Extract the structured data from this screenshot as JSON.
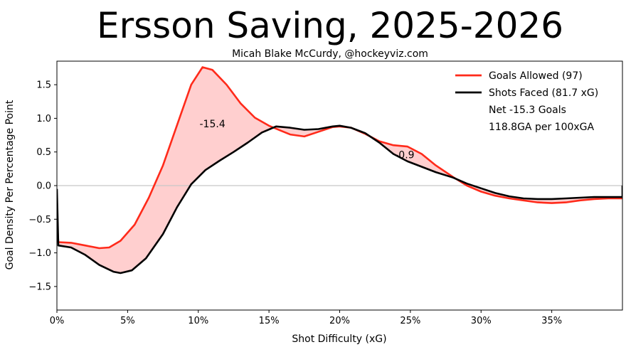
{
  "chart_data": {
    "type": "line",
    "title": "Ersson Saving, 2025-2026",
    "subtitle": "Micah Blake McCurdy, @hockeyviz.com",
    "xlabel": "Shot Difficulty (xG)",
    "ylabel": "Goal Density Per Percentage Point",
    "xlim": [
      0,
      40
    ],
    "ylim": [
      -1.85,
      1.85
    ],
    "x_ticks": [
      0,
      5,
      10,
      15,
      20,
      25,
      30,
      35
    ],
    "x_tick_labels": [
      "0%",
      "5%",
      "10%",
      "15%",
      "20%",
      "25%",
      "30%",
      "35%"
    ],
    "y_ticks": [
      -1.5,
      -1.0,
      -0.5,
      0.0,
      0.5,
      1.0,
      1.5
    ],
    "y_tick_labels": [
      "−1.5",
      "−1.0",
      "−0.5",
      "0.0",
      "0.5",
      "1.0",
      "1.5"
    ],
    "grid": false,
    "zero_line": true,
    "legend_position": "top-right",
    "series": [
      {
        "name": "Goals Allowed (97)",
        "color": "#ff2a1a",
        "points": [
          [
            0,
            -0.5
          ],
          [
            0.1,
            -0.84
          ],
          [
            1,
            -0.85
          ],
          [
            2,
            -0.89
          ],
          [
            3,
            -0.93
          ],
          [
            3.7,
            -0.92
          ],
          [
            4.5,
            -0.82
          ],
          [
            5.5,
            -0.58
          ],
          [
            6.5,
            -0.18
          ],
          [
            7.5,
            0.3
          ],
          [
            8.5,
            0.9
          ],
          [
            9.5,
            1.5
          ],
          [
            10.3,
            1.76
          ],
          [
            11,
            1.72
          ],
          [
            12,
            1.5
          ],
          [
            13,
            1.22
          ],
          [
            14,
            1.01
          ],
          [
            15,
            0.89
          ],
          [
            15.8,
            0.82
          ],
          [
            16.5,
            0.76
          ],
          [
            17.5,
            0.73
          ],
          [
            18.5,
            0.8
          ],
          [
            19.5,
            0.87
          ],
          [
            20,
            0.88
          ],
          [
            20.8,
            0.86
          ],
          [
            21.8,
            0.77
          ],
          [
            22.8,
            0.66
          ],
          [
            23.8,
            0.6
          ],
          [
            24.8,
            0.58
          ],
          [
            25.8,
            0.47
          ],
          [
            26.8,
            0.3
          ],
          [
            28,
            0.13
          ],
          [
            29,
            0.0
          ],
          [
            30,
            -0.09
          ],
          [
            31,
            -0.15
          ],
          [
            32,
            -0.19
          ],
          [
            33,
            -0.22
          ],
          [
            34,
            -0.25
          ],
          [
            35,
            -0.26
          ],
          [
            36,
            -0.25
          ],
          [
            37,
            -0.22
          ],
          [
            38,
            -0.2
          ],
          [
            39,
            -0.19
          ],
          [
            40,
            -0.19
          ]
        ]
      },
      {
        "name": "Shots Faced (81.7 xG)",
        "color": "#000000",
        "points": [
          [
            0,
            -0.05
          ],
          [
            0.1,
            -0.89
          ],
          [
            1,
            -0.92
          ],
          [
            2,
            -1.03
          ],
          [
            3,
            -1.18
          ],
          [
            4,
            -1.28
          ],
          [
            4.5,
            -1.3
          ],
          [
            5.3,
            -1.26
          ],
          [
            6.3,
            -1.08
          ],
          [
            7.5,
            -0.72
          ],
          [
            8.5,
            -0.32
          ],
          [
            9.5,
            0.02
          ],
          [
            10.5,
            0.23
          ],
          [
            11.5,
            0.37
          ],
          [
            12.5,
            0.5
          ],
          [
            13.5,
            0.64
          ],
          [
            14.5,
            0.79
          ],
          [
            15.5,
            0.88
          ],
          [
            16.5,
            0.86
          ],
          [
            17.5,
            0.83
          ],
          [
            18.5,
            0.84
          ],
          [
            19.5,
            0.88
          ],
          [
            20,
            0.89
          ],
          [
            20.8,
            0.86
          ],
          [
            21.8,
            0.78
          ],
          [
            22.8,
            0.64
          ],
          [
            23.8,
            0.47
          ],
          [
            24.8,
            0.36
          ],
          [
            25.8,
            0.28
          ],
          [
            26.8,
            0.2
          ],
          [
            28,
            0.12
          ],
          [
            29,
            0.03
          ],
          [
            30,
            -0.04
          ],
          [
            31,
            -0.11
          ],
          [
            32,
            -0.16
          ],
          [
            33,
            -0.19
          ],
          [
            34,
            -0.2
          ],
          [
            35,
            -0.2
          ],
          [
            36,
            -0.19
          ],
          [
            37,
            -0.18
          ],
          [
            38,
            -0.17
          ],
          [
            39,
            -0.17
          ],
          [
            40,
            -0.17
          ],
          [
            40,
            0.0
          ]
        ]
      }
    ],
    "annotations": [
      {
        "text": "-15.4",
        "x": 11.0,
        "y": 0.92
      },
      {
        "text": "-0.9",
        "x": 24.6,
        "y": 0.46
      }
    ],
    "legend_extra": [
      "Net -15.3 Goals",
      "118.8GA per 100xGA"
    ],
    "fill_color": "#ffcfcf"
  }
}
